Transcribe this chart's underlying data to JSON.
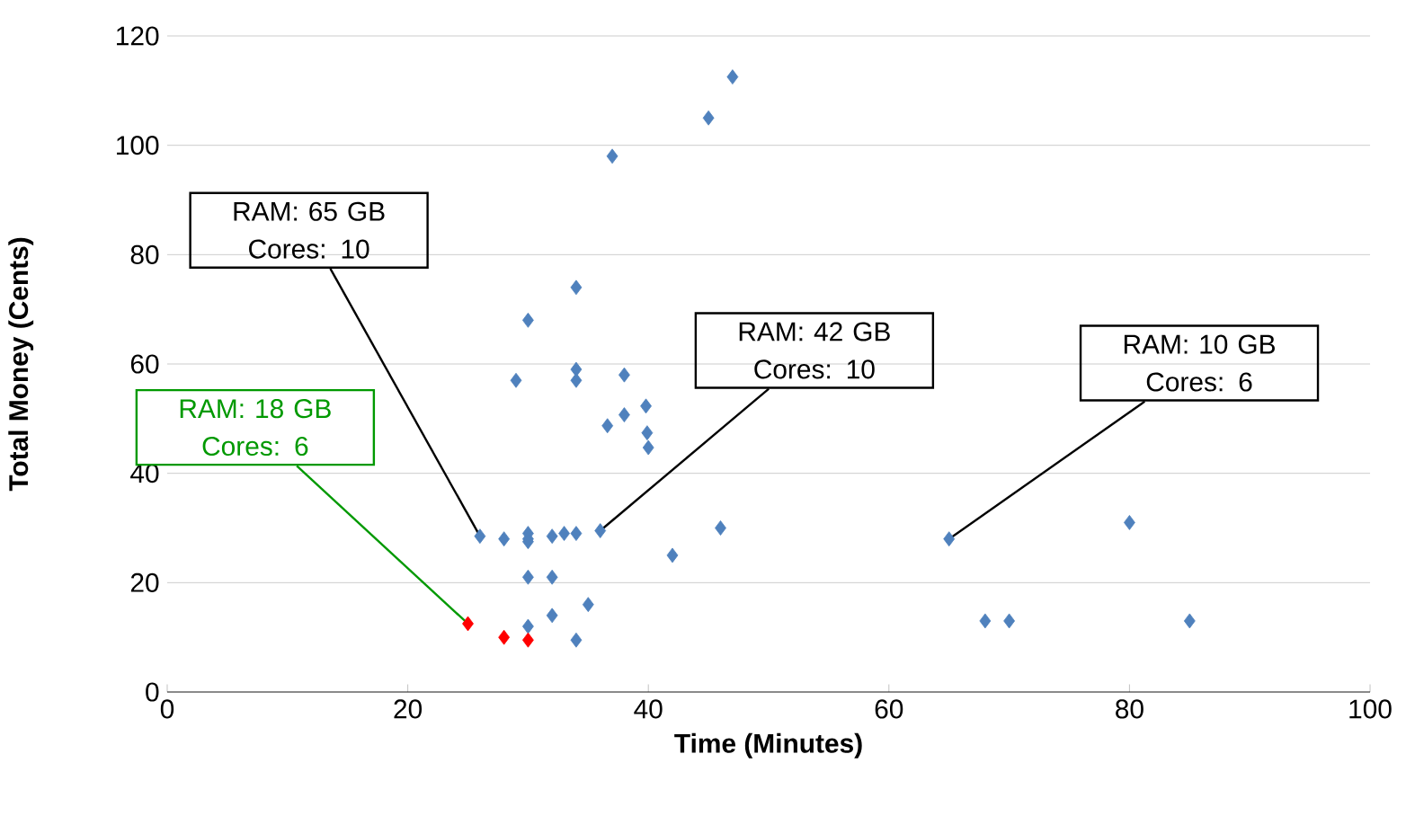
{
  "chart_data": {
    "type": "scatter",
    "xlabel": "Time (Minutes)",
    "ylabel": "Total Money (Cents)",
    "xlim": [
      0,
      100
    ],
    "ylim": [
      0,
      120
    ],
    "xticks": [
      0,
      20,
      40,
      60,
      80,
      100
    ],
    "yticks": [
      0,
      20,
      40,
      60,
      80,
      100,
      120
    ],
    "grid": "y",
    "marker": "diamond",
    "series": [
      {
        "color": "#4f81bd",
        "x": [
          26,
          28,
          30,
          30,
          30,
          32,
          33,
          34,
          36,
          29,
          30,
          30,
          32,
          32,
          30,
          34,
          35,
          34,
          34,
          34,
          37,
          38,
          36.6,
          38,
          39.8,
          39.9,
          40,
          42,
          45,
          47,
          46,
          65,
          68,
          70,
          80,
          85
        ],
        "values": [
          28.5,
          28,
          29,
          28,
          27.5,
          28.5,
          29,
          29,
          29.5,
          57,
          68,
          21,
          21,
          14,
          12,
          9.5,
          16,
          74,
          59,
          57,
          98,
          58,
          48.7,
          50.7,
          52.3,
          47.4,
          44.7,
          25,
          105,
          112.5,
          30,
          28,
          13,
          13,
          31,
          13
        ]
      },
      {
        "color": "#ff0000",
        "x": [
          25,
          28,
          30
        ],
        "values": [
          12.5,
          10,
          9.5
        ]
      }
    ],
    "annotations": [
      {
        "text": "RAM: 65 GB Cores: 10",
        "x": 26,
        "y": 28.5
      },
      {
        "text": "RAM: 42 GB Cores: 10",
        "x": 36,
        "y": 29.5
      },
      {
        "text": "RAM: 10 GB Cores: 6",
        "x": 65,
        "y": 28
      },
      {
        "text": "RAM: 18 GB Cores: 6",
        "x": 25,
        "y": 12.5
      }
    ]
  }
}
